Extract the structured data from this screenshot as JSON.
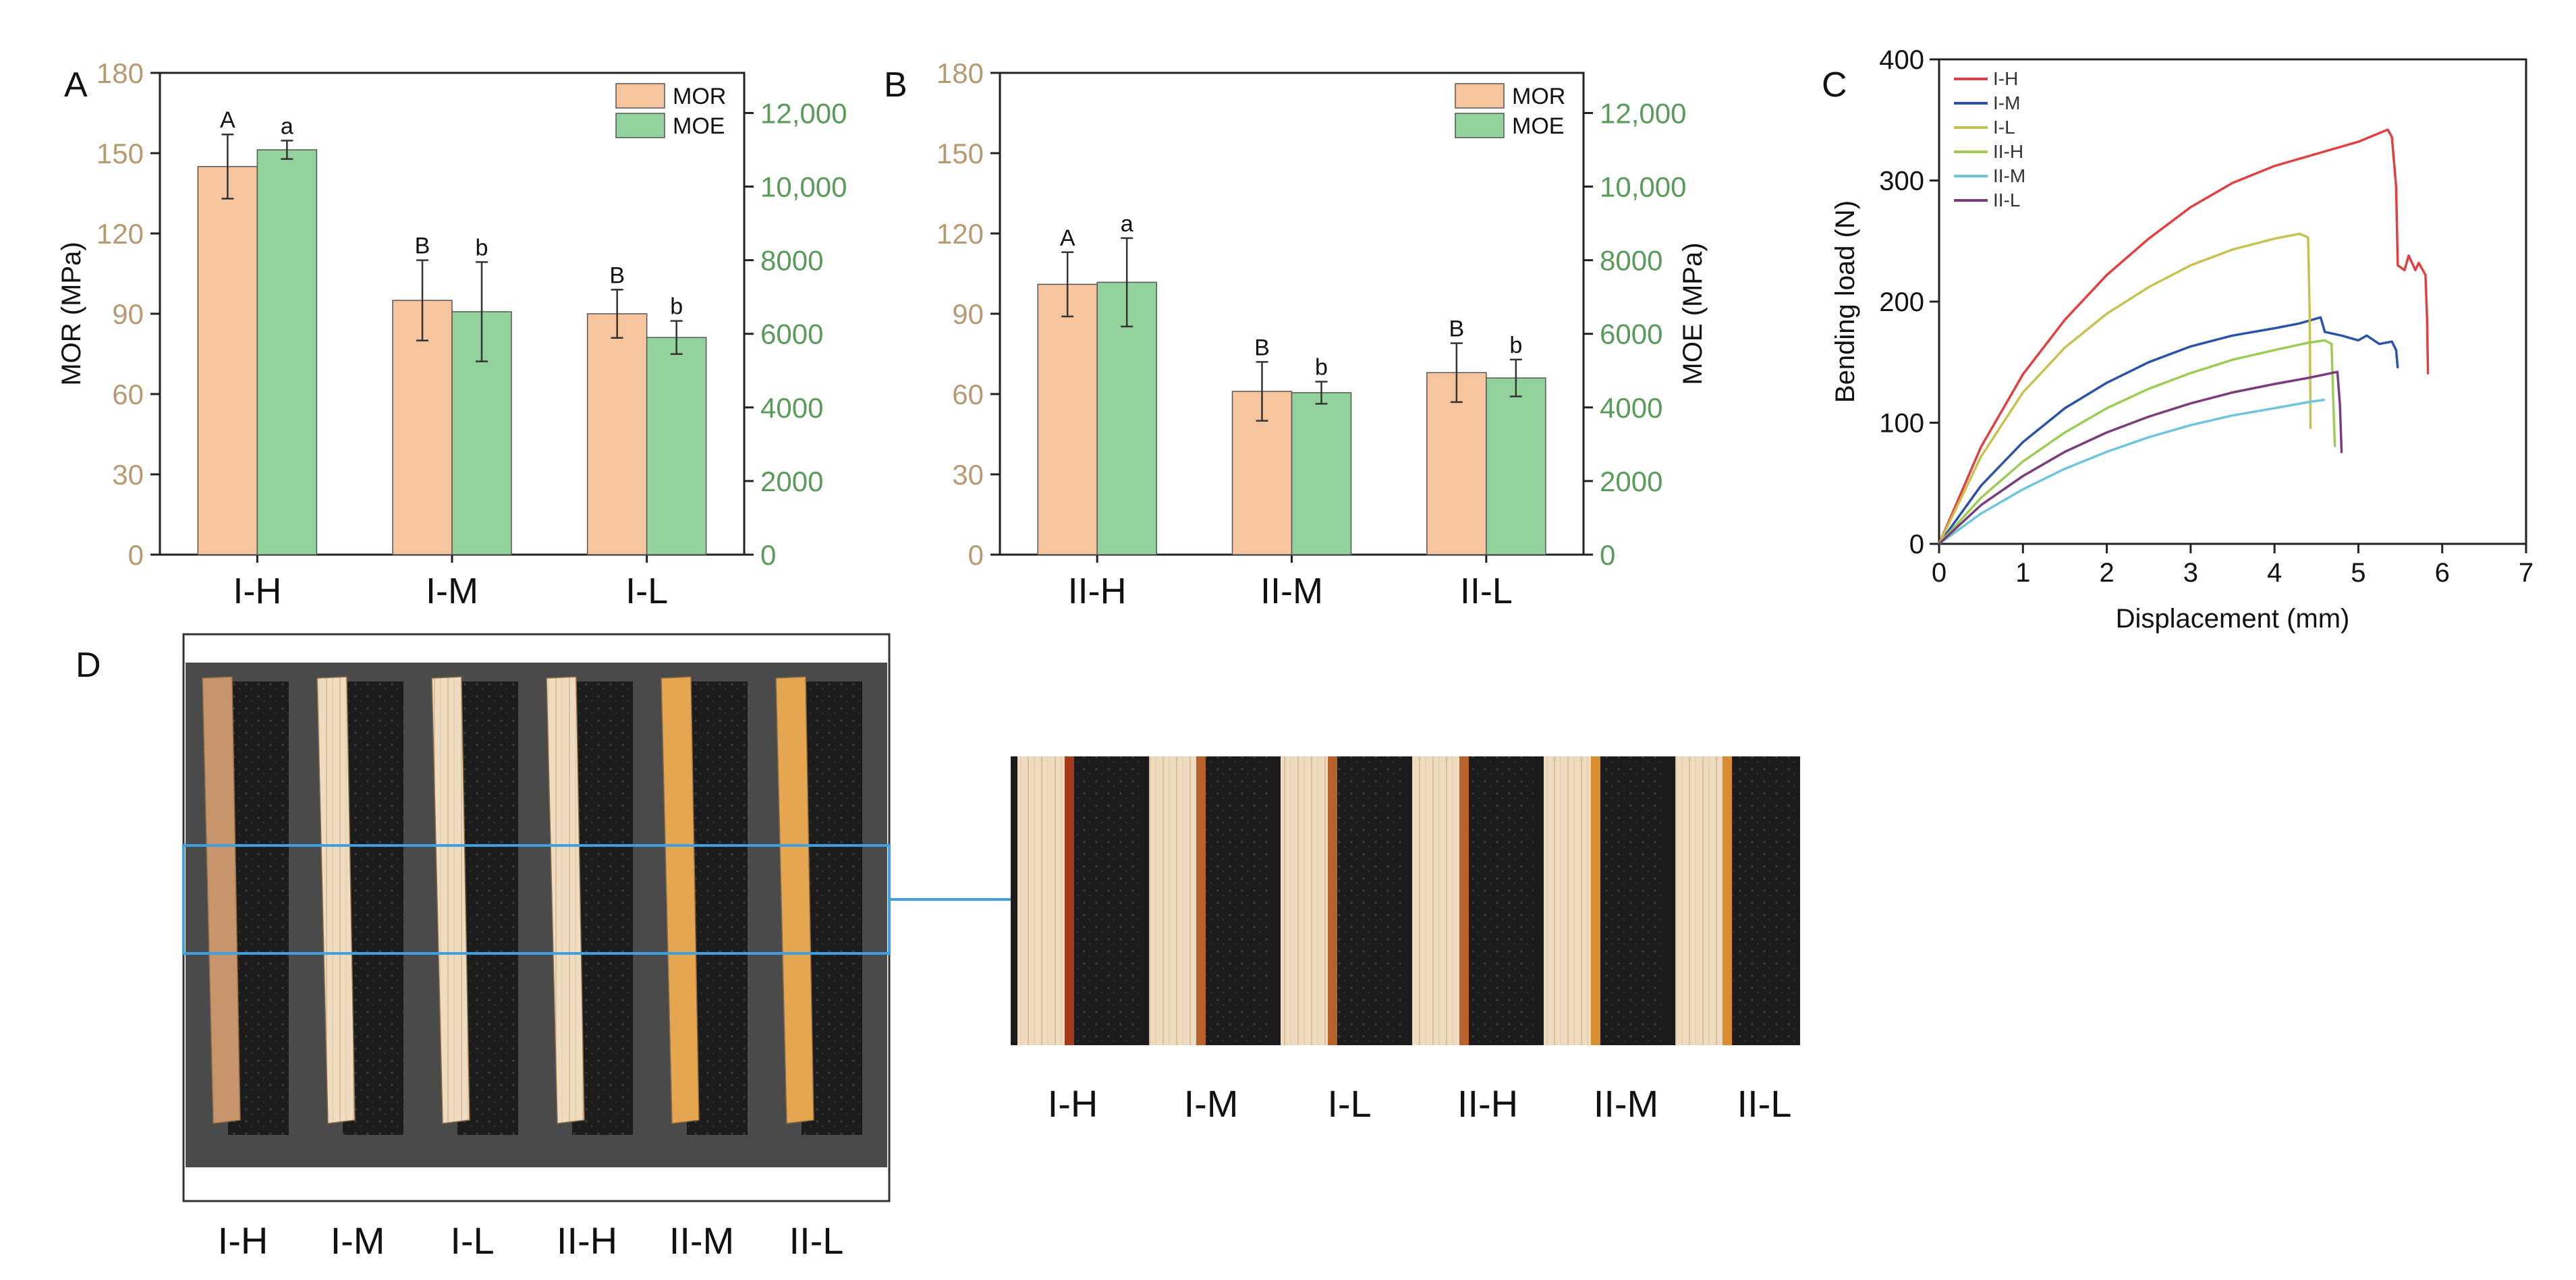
{
  "panel_letters": {
    "a": "A",
    "b": "B",
    "c": "C",
    "d": "D"
  },
  "colors": {
    "mor": "#f6c59d",
    "mor_axis": "#b59a72",
    "moe": "#93d29c",
    "moe_axis": "#5a9a5a",
    "box_blue": "#3ea0e0"
  },
  "chart_data": [
    {
      "panel": "A",
      "type": "bar",
      "categories": [
        "I-H",
        "I-M",
        "I-L"
      ],
      "series": [
        {
          "name": "MOR",
          "axis": "left",
          "values": [
            145,
            95,
            90
          ],
          "errors": [
            12,
            15,
            9
          ],
          "letters": [
            "A",
            "B",
            "B"
          ]
        },
        {
          "name": "MOE",
          "axis": "right",
          "values": [
            11000,
            6600,
            5900
          ],
          "errors": [
            250,
            1350,
            450
          ],
          "letters": [
            "a",
            "b",
            "b"
          ]
        }
      ],
      "ylabel": "MOR (MPa)",
      "y2label": "",
      "ylim": [
        0,
        180
      ],
      "yticks": [
        "0",
        "30",
        "60",
        "90",
        "120",
        "150",
        "180"
      ],
      "y2lim": [
        0,
        13090
      ],
      "y2ticks": [
        "0",
        "2000",
        "4000",
        "6000",
        "8000",
        "10,000",
        "12,000"
      ],
      "legend": [
        "MOR",
        "MOE"
      ],
      "legend_position": "top-right"
    },
    {
      "panel": "B",
      "type": "bar",
      "categories": [
        "II-H",
        "II-M",
        "II-L"
      ],
      "series": [
        {
          "name": "MOR",
          "axis": "left",
          "values": [
            101,
            61,
            68
          ],
          "errors": [
            12,
            11,
            11
          ],
          "letters": [
            "A",
            "B",
            "B"
          ]
        },
        {
          "name": "MOE",
          "axis": "right",
          "values": [
            7400,
            4400,
            4800
          ],
          "errors": [
            1200,
            300,
            500
          ],
          "letters": [
            "a",
            "b",
            "b"
          ]
        }
      ],
      "ylabel": "",
      "y2label": "MOE (MPa)",
      "ylim": [
        0,
        180
      ],
      "yticks": [
        "0",
        "30",
        "60",
        "90",
        "120",
        "150",
        "180"
      ],
      "y2lim": [
        0,
        13090
      ],
      "y2ticks": [
        "0",
        "2000",
        "4000",
        "6000",
        "8000",
        "10,000",
        "12,000"
      ],
      "legend": [
        "MOR",
        "MOE"
      ],
      "legend_position": "top-right"
    },
    {
      "panel": "C",
      "type": "line",
      "xlabel": "Displacement (mm)",
      "ylabel": "Bending load (N)",
      "xlim": [
        0,
        7
      ],
      "ylim": [
        0,
        400
      ],
      "xticks": [
        "0",
        "1",
        "2",
        "3",
        "4",
        "5",
        "6",
        "7"
      ],
      "yticks": [
        "0",
        "100",
        "200",
        "300",
        "400"
      ],
      "legend_position": "top-left",
      "series": [
        {
          "name": "I-H",
          "color": "#e04040",
          "points": [
            [
              0,
              0
            ],
            [
              0.5,
              80
            ],
            [
              1,
              140
            ],
            [
              1.5,
              185
            ],
            [
              2,
              222
            ],
            [
              2.5,
              252
            ],
            [
              3,
              278
            ],
            [
              3.5,
              298
            ],
            [
              4,
              312
            ],
            [
              4.5,
              322
            ],
            [
              5,
              332
            ],
            [
              5.35,
              342
            ],
            [
              5.4,
              336
            ],
            [
              5.45,
              295
            ],
            [
              5.47,
              230
            ],
            [
              5.55,
              226
            ],
            [
              5.6,
              238
            ],
            [
              5.68,
              226
            ],
            [
              5.72,
              232
            ],
            [
              5.8,
              222
            ],
            [
              5.82,
              185
            ],
            [
              5.83,
              140
            ]
          ]
        },
        {
          "name": "I-M",
          "color": "#2a52a8",
          "points": [
            [
              0,
              0
            ],
            [
              0.5,
              48
            ],
            [
              1,
              84
            ],
            [
              1.5,
              112
            ],
            [
              2,
              133
            ],
            [
              2.5,
              150
            ],
            [
              3,
              163
            ],
            [
              3.5,
              172
            ],
            [
              4,
              178
            ],
            [
              4.3,
              182
            ],
            [
              4.55,
              187
            ],
            [
              4.6,
              175
            ],
            [
              4.8,
              172
            ],
            [
              5.0,
              168
            ],
            [
              5.1,
              172
            ],
            [
              5.25,
              165
            ],
            [
              5.4,
              167
            ],
            [
              5.45,
              160
            ],
            [
              5.47,
              145
            ]
          ]
        },
        {
          "name": "I-L",
          "color": "#c6c250",
          "points": [
            [
              0,
              0
            ],
            [
              0.5,
              72
            ],
            [
              1,
              125
            ],
            [
              1.5,
              162
            ],
            [
              2,
              190
            ],
            [
              2.5,
              212
            ],
            [
              3,
              230
            ],
            [
              3.5,
              243
            ],
            [
              4,
              252
            ],
            [
              4.3,
              256
            ],
            [
              4.4,
              253
            ],
            [
              4.42,
              190
            ],
            [
              4.43,
              95
            ]
          ]
        },
        {
          "name": "II-H",
          "color": "#9ccc55",
          "points": [
            [
              0,
              0
            ],
            [
              0.5,
              38
            ],
            [
              1,
              68
            ],
            [
              1.5,
              92
            ],
            [
              2,
              112
            ],
            [
              2.5,
              128
            ],
            [
              3,
              141
            ],
            [
              3.5,
              152
            ],
            [
              4,
              160
            ],
            [
              4.4,
              166
            ],
            [
              4.6,
              168
            ],
            [
              4.68,
              165
            ],
            [
              4.7,
              120
            ],
            [
              4.72,
              80
            ]
          ]
        },
        {
          "name": "II-M",
          "color": "#6ec4dc",
          "points": [
            [
              0,
              0
            ],
            [
              0.5,
              25
            ],
            [
              1,
              45
            ],
            [
              1.5,
              62
            ],
            [
              2,
              76
            ],
            [
              2.5,
              88
            ],
            [
              3,
              98
            ],
            [
              3.5,
              106
            ],
            [
              4,
              112
            ],
            [
              4.4,
              117
            ],
            [
              4.6,
              119
            ]
          ]
        },
        {
          "name": "II-L",
          "color": "#7a3c7a",
          "points": [
            [
              0,
              0
            ],
            [
              0.5,
              32
            ],
            [
              1,
              56
            ],
            [
              1.5,
              76
            ],
            [
              2,
              92
            ],
            [
              2.5,
              105
            ],
            [
              3,
              116
            ],
            [
              3.5,
              125
            ],
            [
              4,
              132
            ],
            [
              4.4,
              137
            ],
            [
              4.75,
              142
            ],
            [
              4.78,
              115
            ],
            [
              4.8,
              75
            ]
          ]
        }
      ]
    }
  ],
  "photo": {
    "specimens": [
      {
        "label": "I-H",
        "tone": "dark"
      },
      {
        "label": "I-M",
        "tone": "light"
      },
      {
        "label": "I-L",
        "tone": "light"
      },
      {
        "label": "II-H",
        "tone": "light"
      },
      {
        "label": "II-M",
        "tone": "orange"
      },
      {
        "label": "II-L",
        "tone": "orange"
      }
    ],
    "zoom_labels": [
      "I-H",
      "I-M",
      "I-L",
      "II-H",
      "II-M",
      "II-L"
    ]
  }
}
